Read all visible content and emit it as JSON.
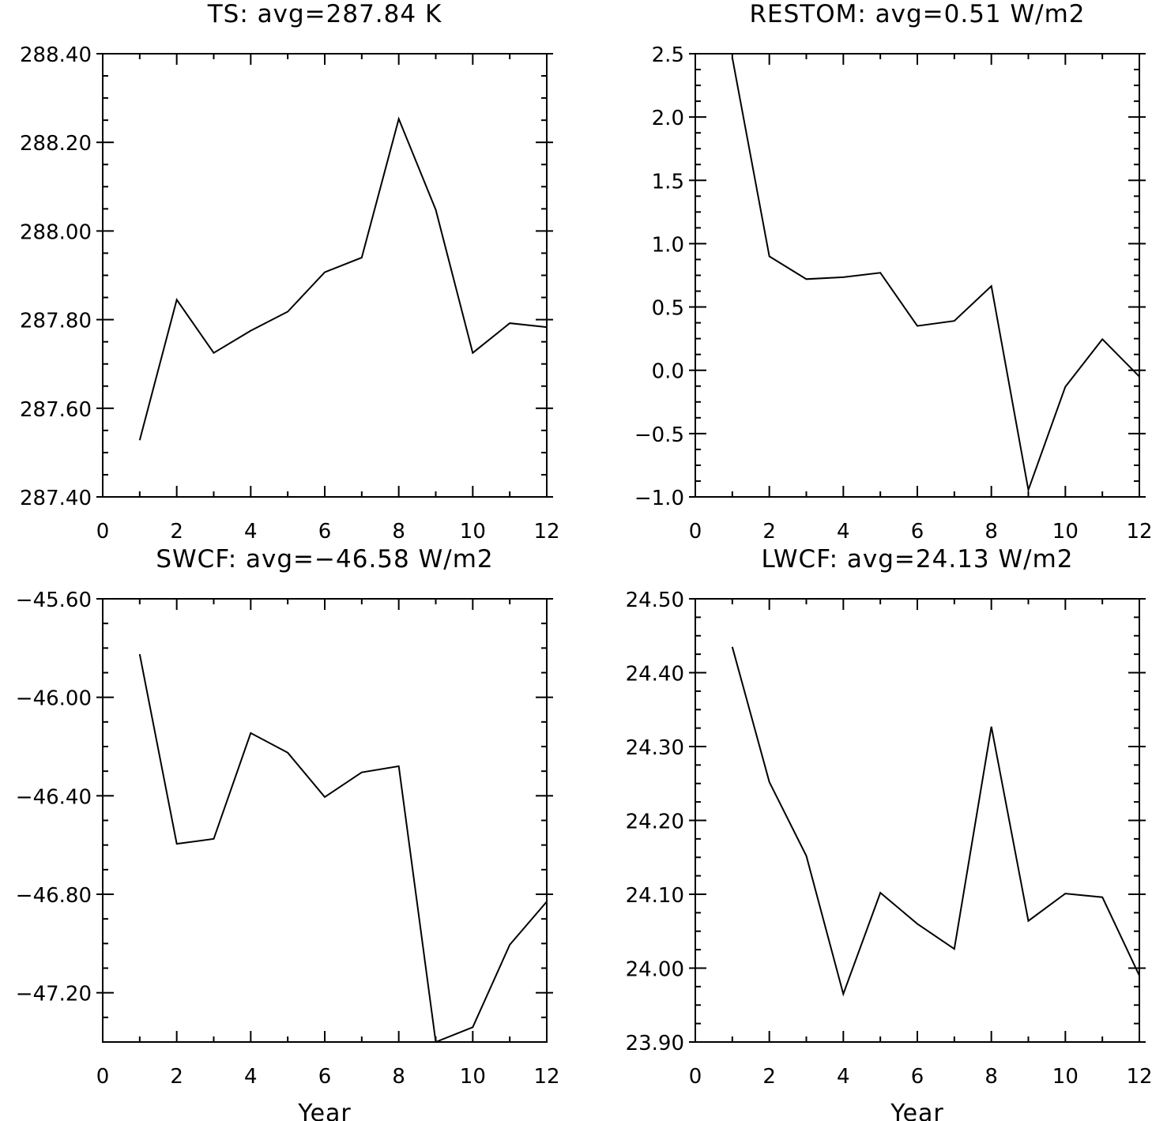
{
  "chart_data": [
    {
      "type": "line",
      "title": "TS: avg=287.84 K",
      "xlabel": "",
      "ylabel": "",
      "xlim": [
        0,
        12
      ],
      "ylim": [
        287.4,
        288.4
      ],
      "x_ticks": [
        "0",
        "2",
        "4",
        "6",
        "8",
        "10",
        "12"
      ],
      "y_ticks": [
        "287.40",
        "287.60",
        "287.80",
        "288.00",
        "288.20",
        "288.40"
      ],
      "x": [
        1,
        2,
        3,
        4,
        5,
        6,
        7,
        8,
        9,
        10,
        11,
        12
      ],
      "series": [
        {
          "values": [
            287.528,
            287.845,
            287.725,
            287.775,
            287.818,
            287.907,
            287.94,
            288.253,
            288.048,
            287.725,
            287.792,
            287.783
          ]
        }
      ],
      "grid": false,
      "line_color": "#000000"
    },
    {
      "type": "line",
      "title": "RESTOM: avg=0.51 W/m2",
      "xlabel": "",
      "ylabel": "",
      "xlim": [
        0,
        12
      ],
      "ylim": [
        -1.0,
        2.5
      ],
      "x_ticks": [
        "0",
        "2",
        "4",
        "6",
        "8",
        "10",
        "12"
      ],
      "y_ticks": [
        "−1.0",
        "−0.5",
        "0.0",
        "0.5",
        "1.0",
        "1.5",
        "2.0",
        "2.5"
      ],
      "x": [
        1,
        2,
        3,
        4,
        5,
        6,
        7,
        8,
        9,
        10,
        11,
        12
      ],
      "series": [
        {
          "values": [
            2.47,
            0.9,
            0.72,
            0.735,
            0.77,
            0.35,
            0.39,
            0.665,
            -0.945,
            -0.13,
            0.245,
            -0.05
          ]
        }
      ],
      "grid": false,
      "line_color": "#000000"
    },
    {
      "type": "line",
      "title": "SWCF: avg=−46.58 W/m2",
      "xlabel": "Year",
      "ylabel": "",
      "xlim": [
        0,
        12
      ],
      "ylim": [
        -47.4,
        -45.6
      ],
      "x_ticks": [
        "0",
        "2",
        "4",
        "6",
        "8",
        "10",
        "12"
      ],
      "y_ticks": [
        "−47.20",
        "−46.80",
        "−46.40",
        "−46.00",
        "−45.60"
      ],
      "x": [
        1,
        2,
        3,
        4,
        5,
        6,
        7,
        8,
        9,
        10,
        11,
        12
      ],
      "series": [
        {
          "values": [
            -45.825,
            -46.595,
            -46.575,
            -46.145,
            -46.225,
            -46.405,
            -46.305,
            -46.28,
            -47.4,
            -47.34,
            -47.005,
            -46.83
          ]
        }
      ],
      "grid": false,
      "line_color": "#000000"
    },
    {
      "type": "line",
      "title": "LWCF: avg=24.13 W/m2",
      "xlabel": "Year",
      "ylabel": "",
      "xlim": [
        0,
        12
      ],
      "ylim": [
        23.9,
        24.5
      ],
      "x_ticks": [
        "0",
        "2",
        "4",
        "6",
        "8",
        "10",
        "12"
      ],
      "y_ticks": [
        "23.90",
        "24.00",
        "24.10",
        "24.20",
        "24.30",
        "24.40",
        "24.50"
      ],
      "x": [
        1,
        2,
        3,
        4,
        5,
        6,
        7,
        8,
        9,
        10,
        11,
        12
      ],
      "series": [
        {
          "values": [
            24.435,
            24.252,
            24.152,
            23.965,
            24.102,
            24.06,
            24.026,
            24.327,
            24.064,
            24.101,
            24.096,
            23.99
          ]
        }
      ],
      "grid": false,
      "line_color": "#000000"
    }
  ]
}
